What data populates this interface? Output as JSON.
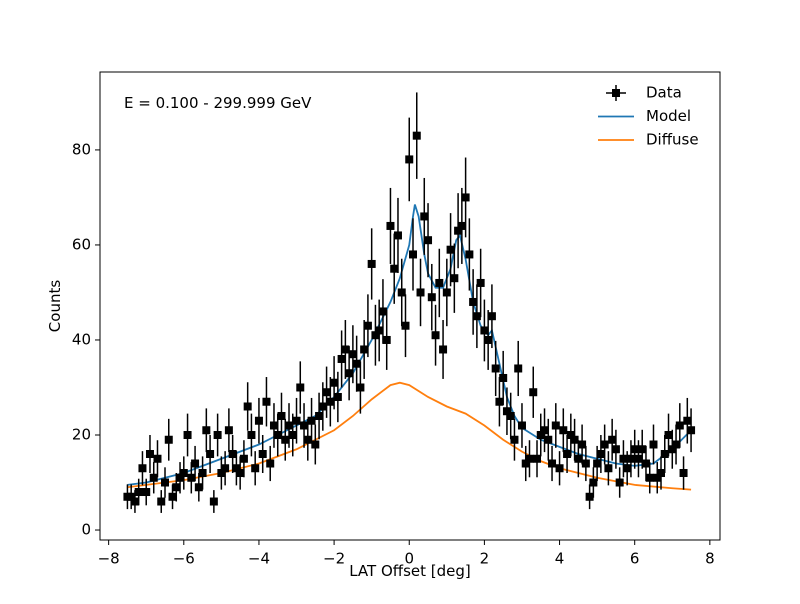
{
  "chart_data": {
    "type": "errorbar",
    "annotation": "E = 0.100 - 299.999 GeV",
    "x_label": "LAT Offset [deg]",
    "y_label": "Counts",
    "data_name": "Data",
    "data_color": "#000000",
    "x": [
      -7.5,
      -7.4,
      -7.3,
      -7.2,
      -7.1,
      -7.0,
      -6.9,
      -6.8,
      -6.7,
      -6.6,
      -6.5,
      -6.4,
      -6.3,
      -6.2,
      -6.1,
      -6.0,
      -5.9,
      -5.8,
      -5.7,
      -5.6,
      -5.5,
      -5.4,
      -5.3,
      -5.2,
      -5.1,
      -5.0,
      -4.9,
      -4.8,
      -4.7,
      -4.6,
      -4.5,
      -4.4,
      -4.3,
      -4.2,
      -4.1,
      -4.0,
      -3.9,
      -3.8,
      -3.7,
      -3.6,
      -3.5,
      -3.4,
      -3.3,
      -3.2,
      -3.1,
      -3.0,
      -2.9,
      -2.8,
      -2.7,
      -2.6,
      -2.5,
      -2.4,
      -2.3,
      -2.2,
      -2.1,
      -2.0,
      -1.9,
      -1.8,
      -1.7,
      -1.6,
      -1.5,
      -1.4,
      -1.3,
      -1.2,
      -1.1,
      -1.0,
      -0.9,
      -0.8,
      -0.7,
      -0.6,
      -0.5,
      -0.4,
      -0.3,
      -0.2,
      -0.1,
      0.0,
      0.1,
      0.2,
      0.3,
      0.4,
      0.5,
      0.6,
      0.7,
      0.8,
      0.9,
      1.0,
      1.1,
      1.2,
      1.3,
      1.4,
      1.5,
      1.6,
      1.7,
      1.8,
      1.9,
      2.0,
      2.1,
      2.2,
      2.3,
      2.4,
      2.5,
      2.6,
      2.7,
      2.8,
      2.9,
      3.0,
      3.1,
      3.2,
      3.3,
      3.4,
      3.5,
      3.6,
      3.7,
      3.8,
      3.9,
      4.0,
      4.1,
      4.2,
      4.3,
      4.4,
      4.5,
      4.6,
      4.7,
      4.8,
      4.9,
      5.0,
      5.1,
      5.2,
      5.3,
      5.4,
      5.5,
      5.6,
      5.7,
      5.8,
      5.9,
      6.0,
      6.1,
      6.2,
      6.3,
      6.4,
      6.5,
      6.6,
      6.7,
      6.8,
      6.9,
      7.0,
      7.1,
      7.2,
      7.3,
      7.4,
      7.5
    ],
    "values": [
      7,
      7,
      6,
      8,
      13,
      8,
      16,
      11,
      15,
      6,
      10,
      19,
      7,
      9,
      11,
      12,
      20,
      11,
      14,
      9,
      12,
      21,
      16,
      6,
      20,
      12,
      13,
      21,
      16,
      13,
      12,
      15,
      26,
      20,
      13,
      23,
      16,
      27,
      14,
      22,
      20,
      24,
      19,
      22,
      20,
      23,
      30,
      22,
      19,
      23,
      18,
      24,
      26,
      29,
      27,
      31,
      28,
      36,
      38,
      33,
      37,
      35,
      30,
      38,
      43,
      56,
      41,
      42,
      46,
      40,
      64,
      55,
      62,
      50,
      43,
      78,
      58,
      83,
      50,
      66,
      61,
      49,
      41,
      52,
      38,
      50,
      59,
      53,
      63,
      64,
      70,
      58,
      48,
      45,
      52,
      42,
      40,
      45,
      34,
      27,
      32,
      25,
      24,
      19,
      34,
      22,
      14,
      15,
      29,
      15,
      20,
      21,
      19,
      14,
      22,
      13,
      21,
      16,
      20,
      19,
      15,
      18,
      14,
      7,
      10,
      14,
      16,
      18,
      13,
      19,
      17,
      10,
      15,
      13,
      15,
      17,
      15,
      17,
      14,
      11,
      18,
      11,
      12,
      16,
      20,
      17,
      18,
      22,
      12,
      23,
      21
    ],
    "errors": [
      2.6,
      2.6,
      2.4,
      2.8,
      3.6,
      2.8,
      4.0,
      3.3,
      3.9,
      2.4,
      3.2,
      4.4,
      2.6,
      3.0,
      3.3,
      3.5,
      4.5,
      3.3,
      3.7,
      3.0,
      3.5,
      4.6,
      4.0,
      2.4,
      4.5,
      3.5,
      3.6,
      4.6,
      4.0,
      3.6,
      3.5,
      3.9,
      5.1,
      4.5,
      3.6,
      4.8,
      4.0,
      5.2,
      3.7,
      4.7,
      4.5,
      4.9,
      4.4,
      4.7,
      4.5,
      4.8,
      5.5,
      4.7,
      4.4,
      4.8,
      4.2,
      4.9,
      5.1,
      5.4,
      5.2,
      5.6,
      5.3,
      6.0,
      6.2,
      5.7,
      6.1,
      5.9,
      5.5,
      6.2,
      6.6,
      7.5,
      6.4,
      6.5,
      6.8,
      6.3,
      8.0,
      7.4,
      7.9,
      7.1,
      6.6,
      8.8,
      7.6,
      9.1,
      7.1,
      8.1,
      7.8,
      7.0,
      6.4,
      7.2,
      6.2,
      7.1,
      7.7,
      7.3,
      7.9,
      8.0,
      8.4,
      7.6,
      6.9,
      6.7,
      7.2,
      6.5,
      6.3,
      6.7,
      5.8,
      5.2,
      5.7,
      5.0,
      4.9,
      4.4,
      5.8,
      4.7,
      3.7,
      3.9,
      5.4,
      3.9,
      4.5,
      4.6,
      4.4,
      3.7,
      4.7,
      3.6,
      4.6,
      4.0,
      4.5,
      4.4,
      3.9,
      4.2,
      3.7,
      2.6,
      3.2,
      3.7,
      4.0,
      4.2,
      3.6,
      4.4,
      4.1,
      3.2,
      3.9,
      3.6,
      3.9,
      4.1,
      3.9,
      4.1,
      3.7,
      3.3,
      4.2,
      3.3,
      3.5,
      4.0,
      4.5,
      4.1,
      4.2,
      4.7,
      3.5,
      4.8,
      4.6
    ],
    "xerr": 0.05,
    "lines": [
      {
        "name": "Model",
        "color": "#1f77b4",
        "x": [
          -7.5,
          -7,
          -6.5,
          -6,
          -5.5,
          -5,
          -4.5,
          -4,
          -3.5,
          -3,
          -2.5,
          -2,
          -1.5,
          -1,
          -0.5,
          -0.25,
          0,
          0.1,
          0.15,
          0.25,
          0.4,
          0.5,
          0.7,
          0.9,
          1.1,
          1.25,
          1.35,
          1.5,
          1.7,
          1.9,
          2.1,
          2.2,
          2.4,
          2.6,
          2.8,
          3,
          3.5,
          4,
          4.5,
          5,
          5.5,
          6,
          6.5,
          7,
          7.5
        ],
        "values": [
          9.5,
          10,
          11,
          12,
          13.5,
          15,
          16.5,
          18,
          20,
          22,
          24,
          28,
          33,
          40,
          48,
          53,
          60,
          66,
          68.5,
          66,
          58,
          54,
          51,
          51,
          55,
          61,
          62,
          57,
          48,
          43,
          41,
          42,
          35,
          28,
          24,
          21.5,
          19,
          17.5,
          16,
          15,
          14,
          13.5,
          14,
          17,
          21
        ]
      },
      {
        "name": "Diffuse",
        "color": "#ff7f0e",
        "x": [
          -7.5,
          -6,
          -5,
          -4,
          -3,
          -2,
          -1.5,
          -1,
          -0.5,
          -0.25,
          0,
          0.5,
          1,
          1.5,
          2,
          2.5,
          3,
          3.5,
          4,
          5,
          6,
          7,
          7.5
        ],
        "values": [
          9,
          10.5,
          12,
          14,
          17,
          21,
          24,
          27.5,
          30.5,
          31,
          30.5,
          28,
          26,
          24.5,
          22,
          19,
          16.5,
          14.5,
          13,
          11,
          9.5,
          8.8,
          8.5
        ]
      }
    ],
    "xlim": [
      -8.23,
      8.27
    ],
    "ylim": [
      -2.1,
      96.4
    ],
    "xticks": [
      {
        "value": -8,
        "label": "−8"
      },
      {
        "value": -6,
        "label": "−6"
      },
      {
        "value": -4,
        "label": "−4"
      },
      {
        "value": -2,
        "label": "−2"
      },
      0,
      2,
      4,
      6,
      8
    ],
    "yticks": [
      0,
      20,
      40,
      60,
      80
    ],
    "legend": "upper right"
  }
}
